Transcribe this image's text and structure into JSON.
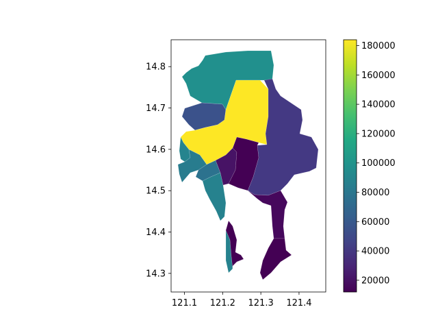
{
  "chart_data": {
    "type": "choropleth",
    "title": "",
    "xlabel": "",
    "ylabel": "",
    "xlim": [
      121.065,
      121.47
    ],
    "ylim": [
      14.255,
      14.865
    ],
    "x_ticks": [
      121.1,
      121.2,
      121.3,
      121.4
    ],
    "x_tick_labels": [
      "121.1",
      "121.2",
      "121.3",
      "121.4"
    ],
    "y_ticks": [
      14.3,
      14.4,
      14.5,
      14.6,
      14.7,
      14.8
    ],
    "y_tick_labels": [
      "14.3",
      "14.4",
      "14.5",
      "14.6",
      "14.7",
      "14.8"
    ],
    "colormap": "viridis",
    "colorbar": {
      "min": 12000,
      "max": 184000,
      "ticks": [
        20000,
        40000,
        60000,
        80000,
        100000,
        120000,
        140000,
        160000,
        180000
      ],
      "tick_labels": [
        "20000",
        "40000",
        "60000",
        "80000",
        "100000",
        "120000",
        "140000",
        "160000",
        "180000"
      ]
    },
    "regions": [
      {
        "id": "north-large",
        "value": 94000,
        "color": "#21908d"
      },
      {
        "id": "central-large",
        "value": 184000,
        "color": "#fde725"
      },
      {
        "id": "northwest-small",
        "value": 52000,
        "color": "#3b528b"
      },
      {
        "id": "east-large",
        "value": 35000,
        "color": "#443983"
      },
      {
        "id": "west-coast-1",
        "value": 88000,
        "color": "#25848e"
      },
      {
        "id": "west-coast-2",
        "value": 82000,
        "color": "#287c8e"
      },
      {
        "id": "west-strip",
        "value": 78000,
        "color": "#2c728e"
      },
      {
        "id": "south-coast",
        "value": 84000,
        "color": "#26828e"
      },
      {
        "id": "center-south-1",
        "value": 22000,
        "color": "#471365"
      },
      {
        "id": "center-south-2",
        "value": 15000,
        "color": "#440154"
      },
      {
        "id": "south-east-1",
        "value": 18000,
        "color": "#46085c"
      },
      {
        "id": "south-east-2",
        "value": 13000,
        "color": "#440154"
      },
      {
        "id": "south-tip",
        "value": 12000,
        "color": "#440154"
      }
    ]
  }
}
